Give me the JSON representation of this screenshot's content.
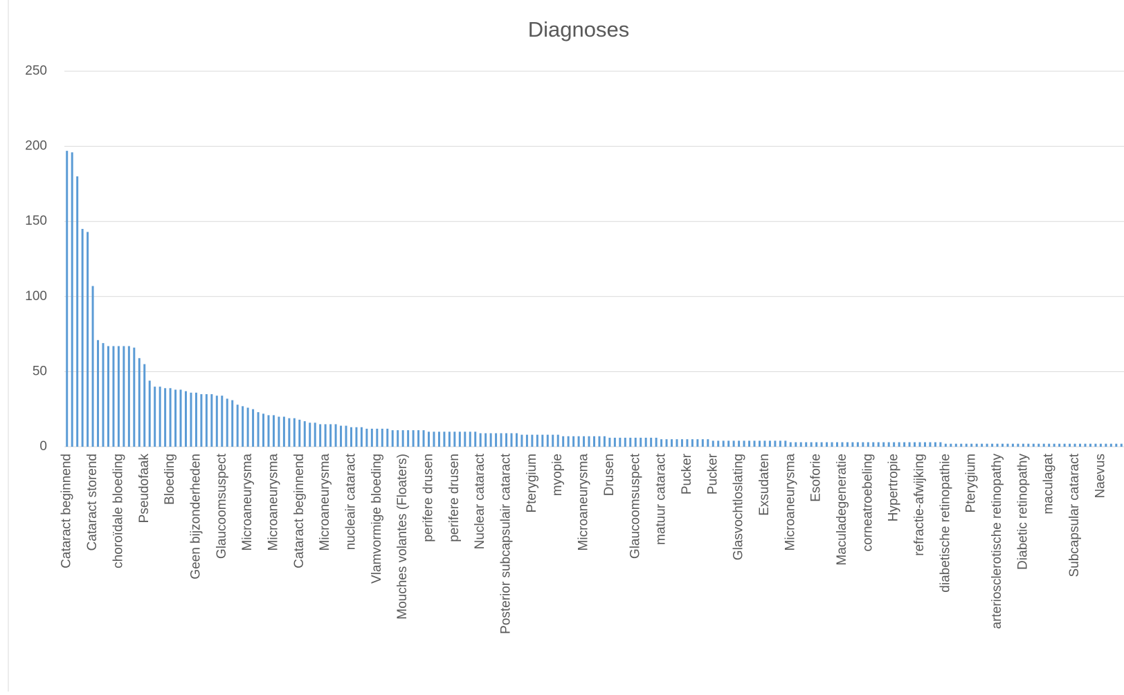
{
  "chart_data": {
    "type": "bar",
    "title": "Diagnoses",
    "categories": [
      "Cataract beginnend",
      null,
      null,
      null,
      null,
      "Cataract storend",
      null,
      null,
      null,
      null,
      "choroïdale bloeding",
      null,
      null,
      null,
      null,
      "Pseudofaak",
      null,
      null,
      null,
      null,
      "Bloeding",
      null,
      null,
      null,
      null,
      "Geen bijzonderheden",
      null,
      null,
      null,
      null,
      "Glaucoomsuspect",
      null,
      null,
      null,
      null,
      "Microaneurysma",
      null,
      null,
      null,
      null,
      "Microaneurysma",
      null,
      null,
      null,
      null,
      "Cataract beginnend",
      null,
      null,
      null,
      null,
      "Microaneurysma",
      null,
      null,
      null,
      null,
      "nucleair cataract",
      null,
      null,
      null,
      null,
      "Vlamvormige bloeding",
      null,
      null,
      null,
      null,
      "Mouches volantes (Floaters)",
      null,
      null,
      null,
      null,
      "perifere drusen",
      null,
      null,
      null,
      null,
      "perifere drusen",
      null,
      null,
      null,
      null,
      "Nuclear cataract",
      null,
      null,
      null,
      null,
      "Posterior subcapsulair cataract",
      null,
      null,
      null,
      null,
      "Pterygium",
      null,
      null,
      null,
      null,
      "myopie",
      null,
      null,
      null,
      null,
      "Microaneurysma",
      null,
      null,
      null,
      null,
      "Drusen",
      null,
      null,
      null,
      null,
      "Glaucoomsuspect",
      null,
      null,
      null,
      null,
      "matuur cataract",
      null,
      null,
      null,
      null,
      "Pucker",
      null,
      null,
      null,
      null,
      "Pucker",
      null,
      null,
      null,
      null,
      "Glasvochtloslating",
      null,
      null,
      null,
      null,
      "Exsudaten",
      null,
      null,
      null,
      null,
      "Microaneurysma",
      null,
      null,
      null,
      null,
      "Esoforie",
      null,
      null,
      null,
      null,
      "Maculadegeneratie",
      null,
      null,
      null,
      null,
      "corneatroebeling",
      null,
      null,
      null,
      null,
      "Hypertropie",
      null,
      null,
      null,
      null,
      "refractie-afwijking",
      null,
      null,
      null,
      null,
      "diabetische retinopathie",
      null,
      null,
      null,
      null,
      "Pterygium",
      null,
      null,
      null,
      null,
      "arteriosclerotische retinopathy",
      null,
      null,
      null,
      null,
      "Diabetic retinopathy",
      null,
      null,
      null,
      null,
      "maculagat",
      null,
      null,
      null,
      null,
      "Subcapsular cataract",
      null,
      null,
      null,
      null,
      "Naevus",
      null,
      null,
      null,
      null
    ],
    "values": [
      197,
      196,
      180,
      145,
      143,
      107,
      71,
      69,
      67,
      67,
      67,
      67,
      67,
      66,
      59,
      55,
      44,
      40,
      40,
      39,
      39,
      38,
      38,
      37,
      36,
      36,
      35,
      35,
      35,
      34,
      34,
      32,
      31,
      28,
      27,
      26,
      25,
      23,
      22,
      21,
      21,
      20,
      20,
      19,
      19,
      18,
      17,
      16,
      16,
      15,
      15,
      15,
      15,
      14,
      14,
      13,
      13,
      13,
      12,
      12,
      12,
      12,
      12,
      11,
      11,
      11,
      11,
      11,
      11,
      11,
      10,
      10,
      10,
      10,
      10,
      10,
      10,
      10,
      10,
      10,
      9,
      9,
      9,
      9,
      9,
      9,
      9,
      9,
      8,
      8,
      8,
      8,
      8,
      8,
      8,
      8,
      7,
      7,
      7,
      7,
      7,
      7,
      7,
      7,
      7,
      6,
      6,
      6,
      6,
      6,
      6,
      6,
      6,
      6,
      6,
      5,
      5,
      5,
      5,
      5,
      5,
      5,
      5,
      5,
      5,
      4,
      4,
      4,
      4,
      4,
      4,
      4,
      4,
      4,
      4,
      4,
      4,
      4,
      4,
      4,
      3,
      3,
      3,
      3,
      3,
      3,
      3,
      3,
      3,
      3,
      3,
      3,
      3,
      3,
      3,
      3,
      3,
      3,
      3,
      3,
      3,
      3,
      3,
      3,
      3,
      3,
      3,
      3,
      3,
      3,
      2,
      2,
      2,
      2,
      2,
      2,
      2,
      2,
      2,
      2,
      2,
      2,
      2,
      2,
      2,
      2,
      2,
      2,
      2,
      2,
      2,
      2,
      2,
      2,
      2,
      2,
      2,
      2,
      2,
      2,
      2,
      2,
      2,
      2,
      2
    ],
    "color": "#5b9bd5",
    "ylim": [
      0,
      250
    ],
    "yticks": [
      0,
      50,
      100,
      150,
      200,
      250
    ],
    "grid": true
  }
}
